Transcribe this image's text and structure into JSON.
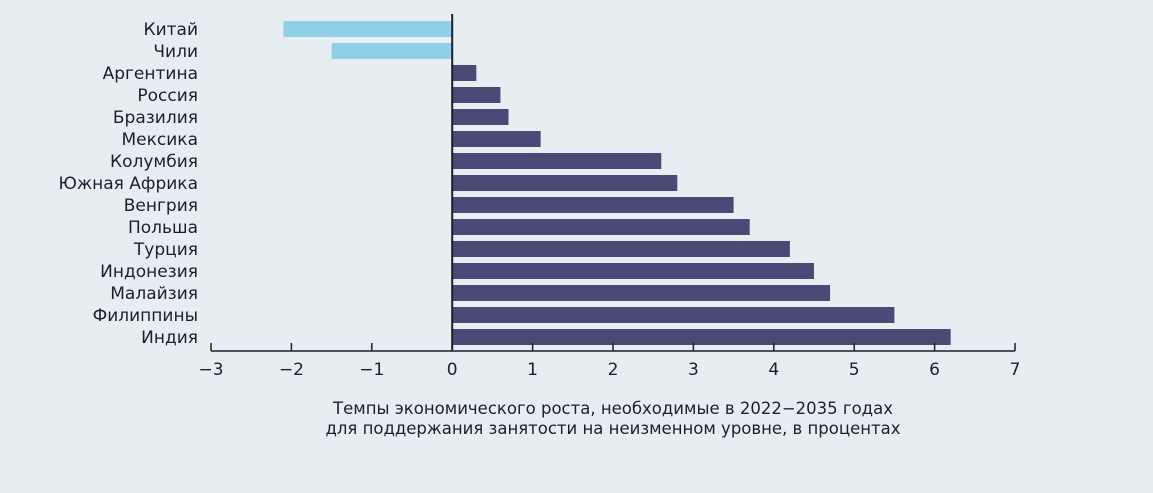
{
  "chart_data": {
    "type": "bar",
    "orientation": "horizontal",
    "categories": [
      "Китай",
      "Чили",
      "Аргентина",
      "Россия",
      "Бразилия",
      "Мексика",
      "Колумбия",
      "Южная Африка",
      "Венгрия",
      "Польша",
      "Турция",
      "Индонезия",
      "Малайзия",
      "Филиппины",
      "Индия"
    ],
    "values": [
      -2.1,
      -1.5,
      0.3,
      0.6,
      0.7,
      1.1,
      2.6,
      2.8,
      3.5,
      3.7,
      4.2,
      4.5,
      4.7,
      5.5,
      6.2
    ],
    "xlim": [
      -3,
      7
    ],
    "xticks": [
      -3,
      -2,
      -1,
      0,
      1,
      2,
      3,
      4,
      5,
      6,
      7
    ],
    "xtick_labels": [
      "−3",
      "−2",
      "−1",
      "0",
      "1",
      "2",
      "3",
      "4",
      "5",
      "6",
      "7"
    ],
    "xlabel_lines": [
      "Темпы экономического роста, необходимые в 2022−2035 годах",
      "для поддержания занятости на неизменном уровне, в процентах"
    ],
    "title": "",
    "grid": false,
    "colors": {
      "positive": "#4a4a77",
      "negative": "#8fd0e8",
      "axis": "#1e1e2e",
      "text": "#1e1e2e",
      "background": "#e7eef2"
    }
  }
}
